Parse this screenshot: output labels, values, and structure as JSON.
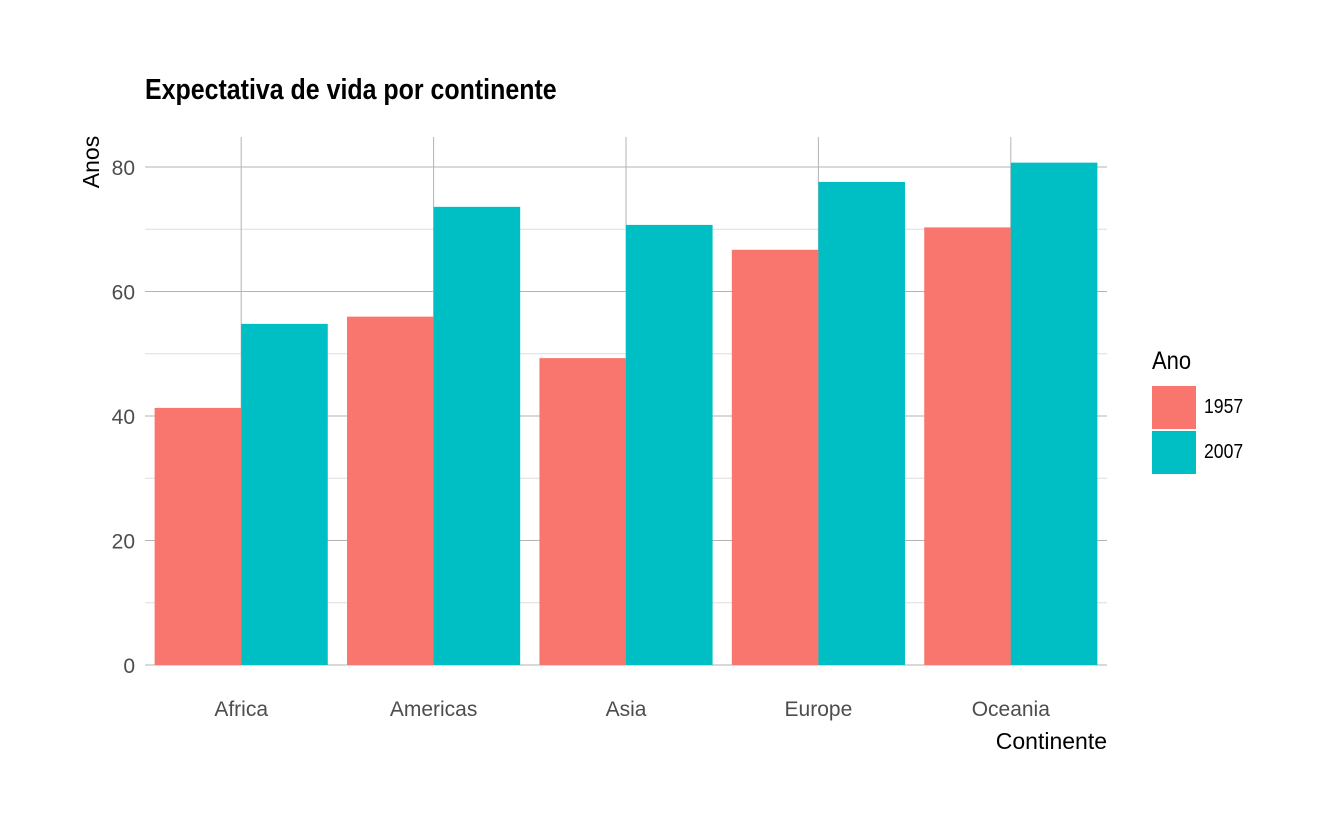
{
  "chart_data": {
    "type": "bar",
    "title": "Expectativa de vida por continente",
    "xlabel": "Continente",
    "ylabel": "Anos",
    "categories": [
      "Africa",
      "Americas",
      "Asia",
      "Europe",
      "Oceania"
    ],
    "series": [
      {
        "name": "1957",
        "color": "#F8766D",
        "values": [
          41.3,
          55.96,
          49.3,
          66.7,
          70.3
        ]
      },
      {
        "name": "2007",
        "color": "#00BFC4",
        "values": [
          54.8,
          73.6,
          70.7,
          77.6,
          80.7
        ]
      }
    ],
    "ylim": [
      0,
      85
    ],
    "yticks": [
      0,
      20,
      40,
      60,
      80
    ],
    "grid": true,
    "legend": {
      "title": "Ano",
      "position": "right"
    }
  }
}
